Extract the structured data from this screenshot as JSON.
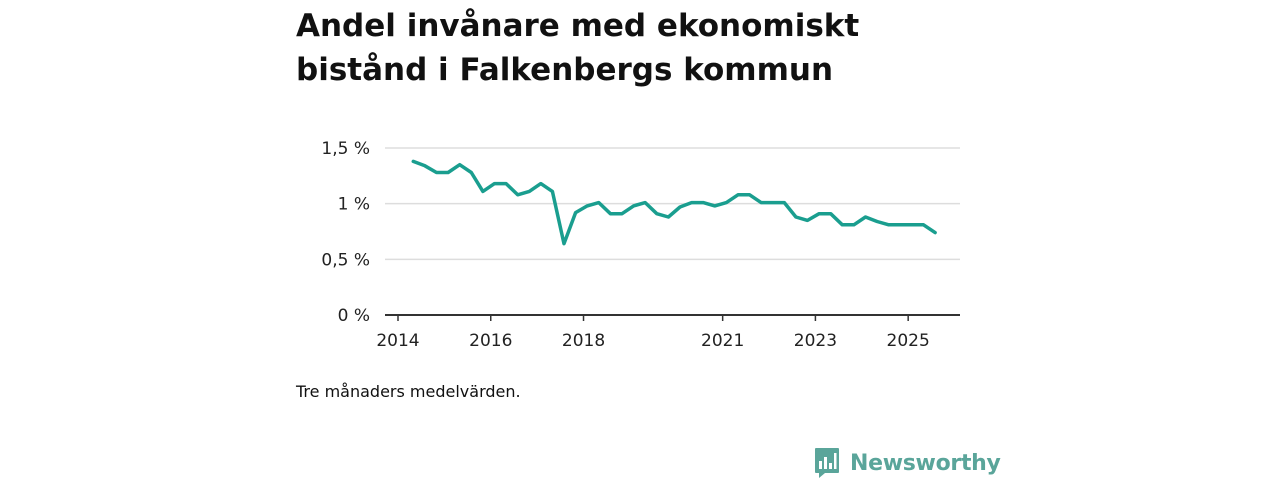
{
  "title": "Andel invånare med ekonomiskt bistånd i Falkenbergs kommun",
  "caption": "Tre månaders medelvärden.",
  "brand": {
    "name": "Newsworthy",
    "icon": "newsworthy-logo-icon",
    "color": "#5aa59a"
  },
  "colors": {
    "line": "#1a9e8f",
    "grid": "#dddddd",
    "axis": "#333333"
  },
  "chart_data": {
    "type": "line",
    "title": "Andel invånare med ekonomiskt bistånd i Falkenbergs kommun",
    "xlabel": "",
    "ylabel": "",
    "ylim": [
      0,
      1.5
    ],
    "xlim": [
      2014,
      2025.6
    ],
    "grid": true,
    "yticks": [
      {
        "value": 0,
        "label": "0 %"
      },
      {
        "value": 0.5,
        "label": "0,5 %"
      },
      {
        "value": 1,
        "label": "1 %"
      },
      {
        "value": 1.5,
        "label": "1,5 %"
      }
    ],
    "xticks": [
      {
        "value": 2014,
        "label": "2014"
      },
      {
        "value": 2016,
        "label": "2016"
      },
      {
        "value": 2018,
        "label": "2018"
      },
      {
        "value": 2021,
        "label": "2021"
      },
      {
        "value": 2023,
        "label": "2023"
      },
      {
        "value": 2025,
        "label": "2025"
      }
    ],
    "series": [
      {
        "name": "Andel invånare med ekonomiskt bistånd",
        "x": [
          2014.33,
          2014.58,
          2014.83,
          2015.08,
          2015.33,
          2015.58,
          2015.83,
          2016.08,
          2016.33,
          2016.58,
          2016.83,
          2017.08,
          2017.33,
          2017.58,
          2017.83,
          2018.08,
          2018.33,
          2018.58,
          2018.83,
          2019.08,
          2019.33,
          2019.58,
          2019.83,
          2020.08,
          2020.33,
          2020.58,
          2020.83,
          2021.08,
          2021.33,
          2021.58,
          2021.83,
          2022.08,
          2022.33,
          2022.58,
          2022.83,
          2023.08,
          2023.33,
          2023.58,
          2023.83,
          2024.08,
          2024.33,
          2024.58,
          2024.83,
          2025.08,
          2025.33,
          2025.58
        ],
        "values": [
          1.38,
          1.34,
          1.28,
          1.28,
          1.35,
          1.28,
          1.11,
          1.18,
          1.18,
          1.08,
          1.11,
          1.18,
          1.11,
          0.64,
          0.92,
          0.98,
          1.01,
          0.91,
          0.91,
          0.98,
          1.01,
          0.91,
          0.88,
          0.97,
          1.01,
          1.01,
          0.98,
          1.01,
          1.08,
          1.08,
          1.01,
          1.01,
          1.01,
          0.88,
          0.85,
          0.91,
          0.91,
          0.81,
          0.81,
          0.88,
          0.84,
          0.81,
          0.81,
          0.81,
          0.81,
          0.74
        ]
      }
    ]
  }
}
